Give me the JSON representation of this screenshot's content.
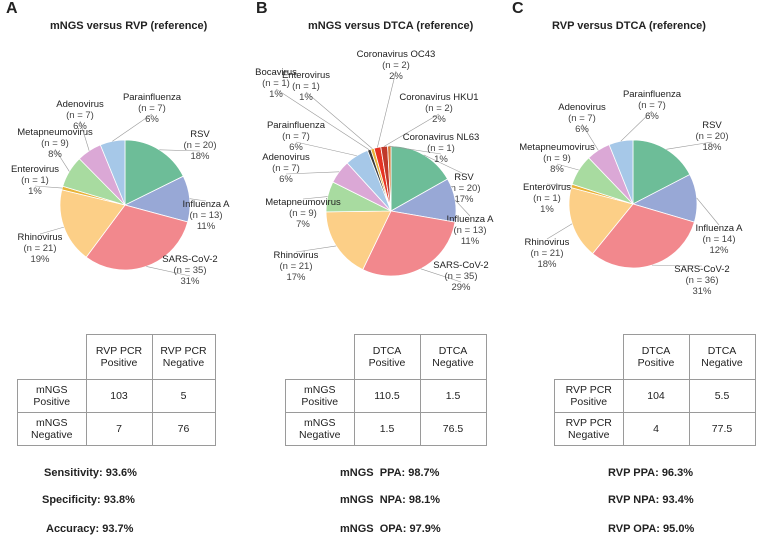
{
  "chart_data": [
    {
      "type": "pie",
      "letter": "A",
      "title": "mNGS versus RVP (reference)",
      "slices": [
        {
          "name": "RSV",
          "n": "(n = 20)",
          "pct": "18%",
          "value": 20,
          "color": "#6dbd98"
        },
        {
          "name": "Influenza A",
          "n": "(n = 13)",
          "pct": "11%",
          "value": 13,
          "color": "#98a8d6"
        },
        {
          "name": "SARS-CoV-2",
          "n": "(n = 35)",
          "pct": "31%",
          "value": 35,
          "color": "#f2888d"
        },
        {
          "name": "Rhinovirus",
          "n": "(n = 21)",
          "pct": "19%",
          "value": 21,
          "color": "#fccf87"
        },
        {
          "name": "Enterovirus",
          "n": "(n = 1)",
          "pct": "1%",
          "value": 1,
          "color": "#e8b338"
        },
        {
          "name": "Metapneumovirus",
          "n": "(n = 9)",
          "pct": "8%",
          "value": 9,
          "color": "#a8dba0"
        },
        {
          "name": "Adenovirus",
          "n": "(n = 7)",
          "pct": "6%",
          "value": 7,
          "color": "#dba8d6"
        },
        {
          "name": "Parainfluenza",
          "n": "(n = 7)",
          "pct": "6%",
          "value": 7,
          "color": "#a6c8e8"
        }
      ],
      "table": {
        "col_headers": [
          "RVP PCR\nPositive",
          "RVP PCR\nNegative"
        ],
        "rows": [
          {
            "label": "mNGS\nPositive",
            "cells": [
              "103",
              "5"
            ]
          },
          {
            "label": "mNGS\nNegative",
            "cells": [
              "7",
              "76"
            ]
          }
        ]
      },
      "metrics": [
        {
          "label": "Sensitivity:",
          "value": "93.6%"
        },
        {
          "label": "Specificity:",
          "value": "93.8%"
        },
        {
          "label": "Accuracy:",
          "value": "93.7%"
        }
      ]
    },
    {
      "type": "pie",
      "letter": "B",
      "title": "mNGS versus DTCA (reference)",
      "slices": [
        {
          "name": "RSV",
          "n": "(n = 20)",
          "pct": "17%",
          "value": 20,
          "color": "#6dbd98"
        },
        {
          "name": "Influenza A",
          "n": "(n = 13)",
          "pct": "11%",
          "value": 13,
          "color": "#98a8d6"
        },
        {
          "name": "SARS-CoV-2",
          "n": "(n = 35)",
          "pct": "29%",
          "value": 35,
          "color": "#f2888d"
        },
        {
          "name": "Rhinovirus",
          "n": "(n = 21)",
          "pct": "17%",
          "value": 21,
          "color": "#fccf87"
        },
        {
          "name": "Metapneumovirus",
          "n": "(n = 9)",
          "pct": "7%",
          "value": 9,
          "color": "#a8dba0"
        },
        {
          "name": "Adenovirus",
          "n": "(n = 7)",
          "pct": "6%",
          "value": 7,
          "color": "#dba8d6"
        },
        {
          "name": "Parainfluenza",
          "n": "(n = 7)",
          "pct": "6%",
          "value": 7,
          "color": "#a6c8e8"
        },
        {
          "name": "Bocavirus",
          "n": "(n = 1)",
          "pct": "1%",
          "value": 1,
          "color": "#3a3a3a"
        },
        {
          "name": "Enterovirus",
          "n": "(n = 1)",
          "pct": "1%",
          "value": 1,
          "color": "#e8b338"
        },
        {
          "name": "Coronavirus OC43",
          "n": "(n = 2)",
          "pct": "2%",
          "value": 2,
          "color": "#e63322"
        },
        {
          "name": "Coronavirus HKU1",
          "n": "(n = 2)",
          "pct": "2%",
          "value": 2,
          "color": "#c0392b"
        },
        {
          "name": "Coronavirus NL63",
          "n": "(n = 1)",
          "pct": "1%",
          "value": 1,
          "color": "#d97a3a"
        }
      ],
      "table": {
        "col_headers": [
          "DTCA\nPositive",
          "DTCA\nNegative"
        ],
        "rows": [
          {
            "label": "mNGS\nPositive",
            "cells": [
              "110.5",
              "1.5"
            ]
          },
          {
            "label": "mNGS\nNegative",
            "cells": [
              "1.5",
              "76.5"
            ]
          }
        ]
      },
      "metrics": [
        {
          "label": "mNGS  PPA:",
          "value": "98.7%"
        },
        {
          "label": "mNGS  NPA:",
          "value": "98.1%"
        },
        {
          "label": "mNGS  OPA:",
          "value": "97.9%"
        }
      ]
    },
    {
      "type": "pie",
      "letter": "C",
      "title": "RVP versus DTCA (reference)",
      "slices": [
        {
          "name": "RSV",
          "n": "(n = 20)",
          "pct": "18%",
          "value": 20,
          "color": "#6dbd98"
        },
        {
          "name": "Influenza A",
          "n": "(n = 14)",
          "pct": "12%",
          "value": 14,
          "color": "#98a8d6"
        },
        {
          "name": "SARS-CoV-2",
          "n": "(n = 36)",
          "pct": "31%",
          "value": 36,
          "color": "#f2888d"
        },
        {
          "name": "Rhinovirus",
          "n": "(n = 21)",
          "pct": "18%",
          "value": 21,
          "color": "#fccf87"
        },
        {
          "name": "Enterovirus",
          "n": "(n = 1)",
          "pct": "1%",
          "value": 1,
          "color": "#e8b338"
        },
        {
          "name": "Metapneumovirus",
          "n": "(n = 9)",
          "pct": "8%",
          "value": 9,
          "color": "#a8dba0"
        },
        {
          "name": "Adenovirus",
          "n": "(n = 7)",
          "pct": "6%",
          "value": 7,
          "color": "#dba8d6"
        },
        {
          "name": "Parainfluenza",
          "n": "(n = 7)",
          "pct": "6%",
          "value": 7,
          "color": "#a6c8e8"
        }
      ],
      "table": {
        "col_headers": [
          "DTCA\nPositive",
          "DTCA\nNegative"
        ],
        "rows": [
          {
            "label": "RVP PCR\nPositive",
            "cells": [
              "104",
              "5.5"
            ]
          },
          {
            "label": "RVP PCR\nNegative",
            "cells": [
              "4",
              "77.5"
            ]
          }
        ]
      },
      "metrics": [
        {
          "label": "RVP PPA:",
          "value": "96.3%"
        },
        {
          "label": "RVP NPA:",
          "value": "93.4%"
        },
        {
          "label": "RVP OPA:",
          "value": "95.0%"
        }
      ]
    }
  ]
}
